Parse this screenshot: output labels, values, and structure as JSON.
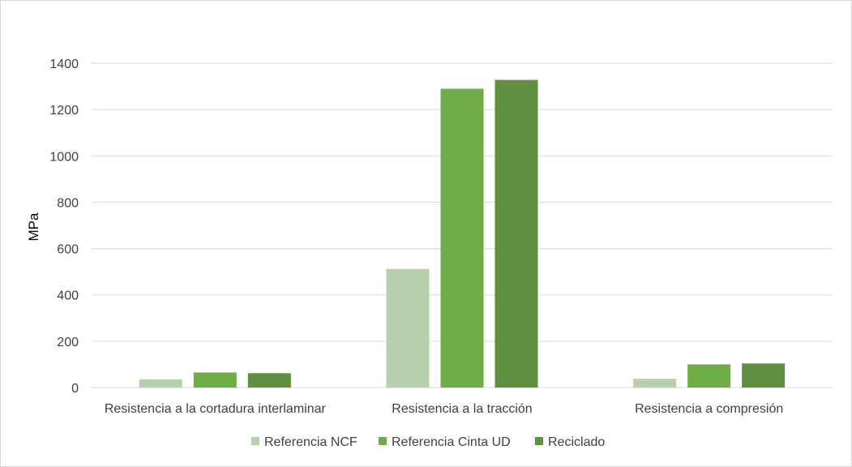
{
  "chart_data": {
    "type": "bar",
    "title": "",
    "xlabel": "",
    "ylabel": "MPa",
    "ylim": [
      0,
      1400
    ],
    "yticks": [
      0,
      200,
      400,
      600,
      800,
      1000,
      1200,
      1400
    ],
    "grid": true,
    "legend_position": "bottom",
    "categories": [
      "Resistencia a la cortadura interlaminar",
      "Resistencia a la tracción",
      "Resistencia a compresión"
    ],
    "series": [
      {
        "name": "Referencia NCF",
        "color": "#b8d1ad",
        "values": [
          35,
          512,
          38
        ]
      },
      {
        "name": "Referencia Cinta UD",
        "color": "#70ad47",
        "values": [
          65,
          1290,
          100
        ]
      },
      {
        "name": "Reciclado",
        "color": "#5e9040",
        "values": [
          62,
          1328,
          104
        ]
      }
    ]
  }
}
